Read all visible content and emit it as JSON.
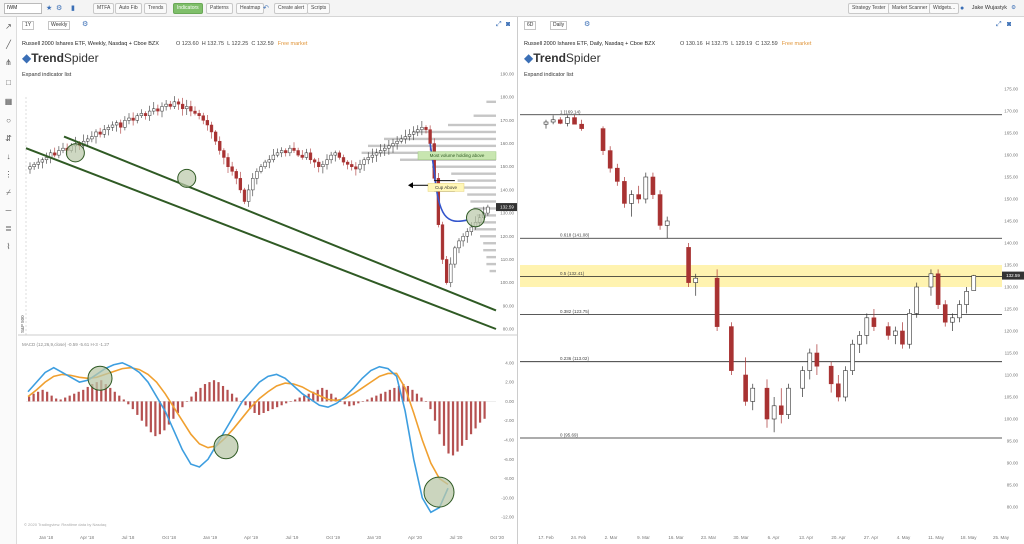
{
  "toolbar": {
    "symbol": "IWM",
    "buttons": [
      "MTFA",
      "Auto Fib",
      "Trends",
      "Indicators",
      "Patterns",
      "Heatmap",
      "Create alert",
      "Scripts"
    ],
    "right_buttons": [
      "Strategy Tester",
      "Market Scanner",
      "Widgets..."
    ],
    "user_name": "Jake Wujastyk",
    "active_button": "Indicators"
  },
  "left_chart": {
    "period_select": "1Y",
    "interval_select": "Weekly",
    "title": "Russell 2000 Ishares ETF, Weekly, Nasdaq + Cboe BZX",
    "ohlc": {
      "o": "O 123.60",
      "h": "H 132.75",
      "l": "L 122.25",
      "c": "C 132.59",
      "market": "Free market"
    },
    "logo_bold": "Trend",
    "logo_rest": "Spider",
    "expand": "Expand indicator list",
    "annotation_volume": "Most volume holding above",
    "annotation_cup": "Cup Above",
    "price_tag": "132.59",
    "price_axis": [
      "190.00",
      "180.00",
      "170.00",
      "160.00",
      "150.00",
      "140.00",
      "130.00",
      "120.00",
      "110.00",
      "100.00",
      "90.00",
      "80.00"
    ],
    "macd_label": "MACD (12,26,9,close)   -0.59   -5.61   H-3   -1.27",
    "macd_axis": [
      "4.00",
      "2.00",
      "0.00",
      "-2.00",
      "-4.00",
      "-6.00",
      "-8.00",
      "-10.00",
      "-12.00"
    ],
    "time_axis": [
      "Jan '18",
      "Apr '18",
      "Jul '18",
      "Oct '18",
      "Jan '19",
      "Apr '19",
      "Jul '19",
      "Oct '19",
      "Jan '20",
      "Apr '20",
      "Jul '20",
      "Oct '20"
    ],
    "copyright": "© 2020 Tradingview. Realtime data by Nasdaq",
    "vert_label": "S&P 500"
  },
  "right_chart": {
    "period_select": "6D",
    "interval_select": "Daily",
    "title": "Russell 2000 Ishares ETF, Daily, Nasdaq + Cboe BZX",
    "ohlc": {
      "o": "O 130.16",
      "h": "H 132.75",
      "l": "L 129.19",
      "c": "C 132.59",
      "market": "Free market"
    },
    "logo_bold": "Trend",
    "logo_rest": "Spider",
    "expand": "Expand indicator list",
    "fib_labels": [
      "1 (169.14)",
      "0.618 (141.08)",
      "0.5 (132.41)",
      "0.382 (123.75)",
      "0.236 (113.02)",
      "0 (95.69)"
    ],
    "price_tag": "132.59",
    "price_axis": [
      "175.00",
      "170.00",
      "165.00",
      "160.00",
      "155.00",
      "150.00",
      "145.00",
      "140.00",
      "135.00",
      "130.00",
      "125.00",
      "120.00",
      "115.00",
      "110.00",
      "105.00",
      "100.00",
      "95.00",
      "90.00",
      "85.00",
      "80.00"
    ],
    "time_axis": [
      "17. Feb",
      "24. Feb",
      "2. Mar",
      "9. Mar",
      "16. Mar",
      "23. Mar",
      "30. Mar",
      "6. Apr",
      "13. Apr",
      "20. Apr",
      "27. Apr",
      "4. May",
      "11. May",
      "18. May",
      "25. May"
    ]
  },
  "colors": {
    "up": "#333333",
    "down": "#a83232",
    "trendline": "#2f5a24",
    "macd": "#3d9ee0",
    "signal": "#f0a030",
    "circle_fill": "#b9c7a8",
    "fib_highlight": "#fff3b0",
    "volume_profile": "#b8b8b8"
  }
}
